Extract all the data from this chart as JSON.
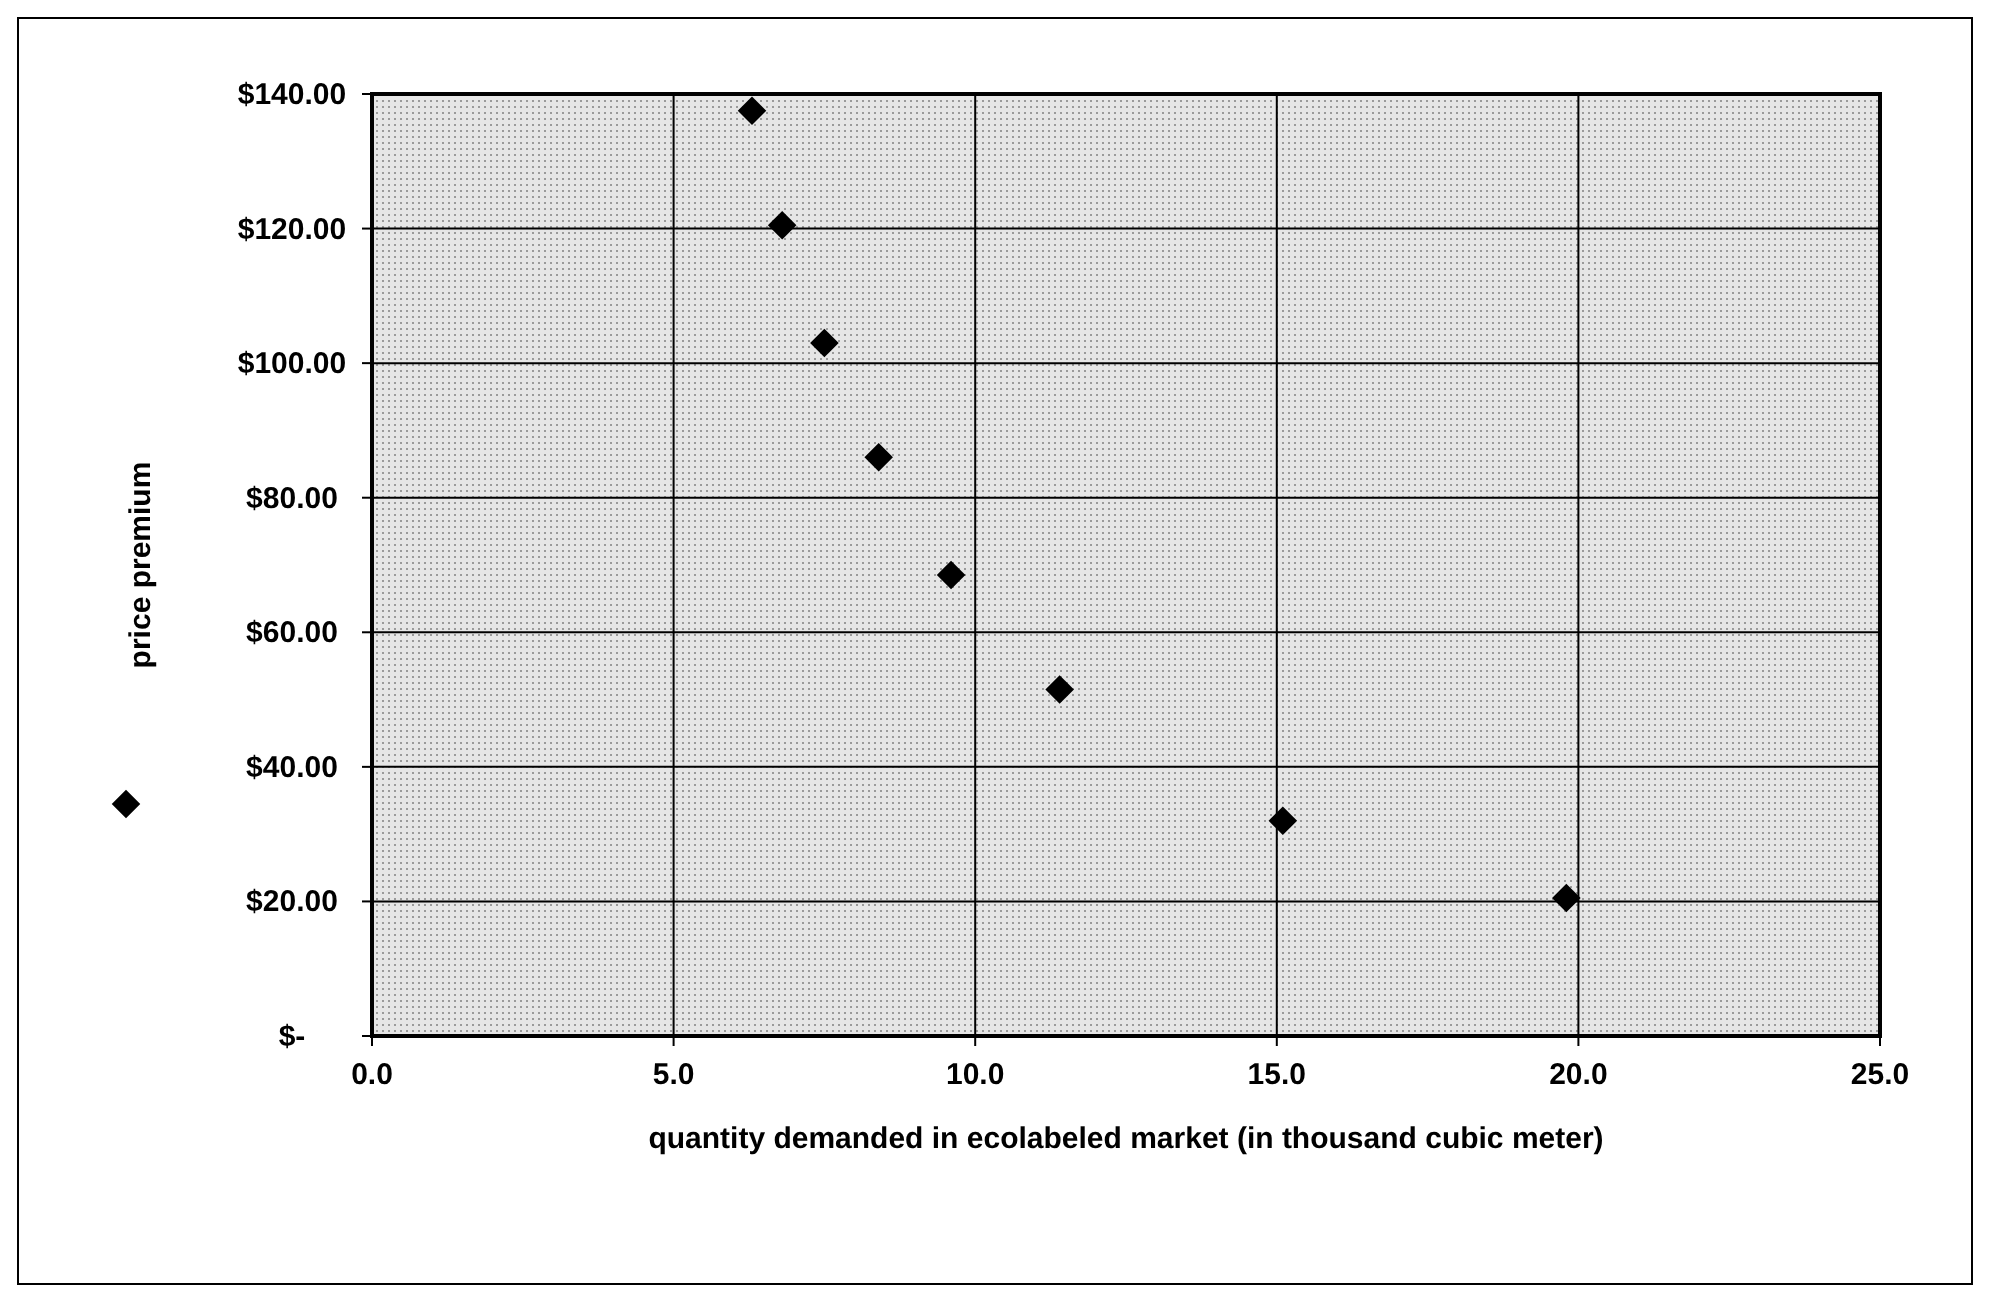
{
  "chart_data": {
    "type": "scatter",
    "xlabel": "quantity demanded in ecolabeled market (in thousand cubic meter)",
    "ylabel": "price premium",
    "x": [
      6.3,
      6.8,
      7.5,
      8.4,
      9.6,
      11.4,
      15.1,
      19.8
    ],
    "series": [
      {
        "color": "#000000",
        "values": [
          137.5,
          120.5,
          103,
          86,
          68.5,
          51.5,
          32,
          20.5
        ]
      }
    ],
    "marker": "diamond",
    "grid": true,
    "xlim": [
      0,
      25
    ],
    "xticks": [
      {
        "value": 0,
        "label": "0.0"
      },
      {
        "value": 5,
        "label": "5.0"
      },
      {
        "value": 10,
        "label": "10.0"
      },
      {
        "value": 15,
        "label": "15.0"
      },
      {
        "value": 20,
        "label": "20.0"
      },
      {
        "value": 25,
        "label": "25.0"
      }
    ],
    "ylim": [
      0,
      140
    ],
    "yticks": [
      {
        "value": 0,
        "label": "$-"
      },
      {
        "value": 20,
        "label": "$20.00"
      },
      {
        "value": 40,
        "label": "$40.00"
      },
      {
        "value": 60,
        "label": "$60.00"
      },
      {
        "value": 80,
        "label": "$80.00"
      },
      {
        "value": 100,
        "label": "$100.00"
      },
      {
        "value": 120,
        "label": "$120.00"
      },
      {
        "value": 140,
        "label": "$140.00"
      }
    ]
  }
}
